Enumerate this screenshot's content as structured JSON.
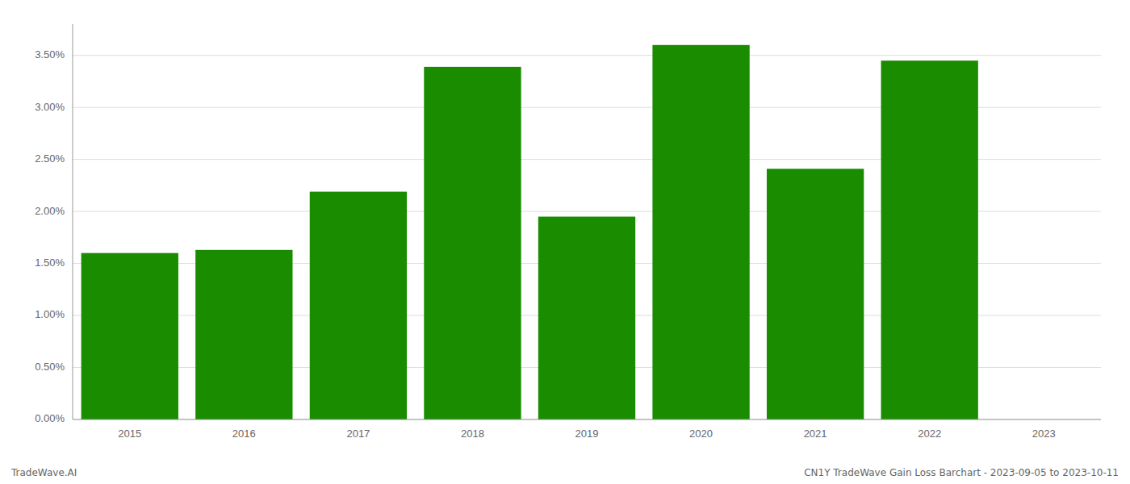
{
  "chart_data": {
    "type": "bar",
    "categories": [
      "2015",
      "2016",
      "2017",
      "2018",
      "2019",
      "2020",
      "2021",
      "2022",
      "2023"
    ],
    "values": [
      0.016,
      0.0163,
      0.0219,
      0.0339,
      0.0195,
      0.036,
      0.0241,
      0.0345,
      null
    ],
    "color": "#1a8c00",
    "ylim": [
      0.0,
      0.038
    ],
    "yticks": [
      {
        "value": 0.0,
        "label": "0.00%"
      },
      {
        "value": 0.005,
        "label": "0.50%"
      },
      {
        "value": 0.01,
        "label": "1.00%"
      },
      {
        "value": 0.015,
        "label": "1.50%"
      },
      {
        "value": 0.02,
        "label": "2.00%"
      },
      {
        "value": 0.025,
        "label": "2.50%"
      },
      {
        "value": 0.03,
        "label": "3.00%"
      },
      {
        "value": 0.035,
        "label": "3.50%"
      }
    ],
    "grid": true,
    "annotations": [
      "TradeWave.AI",
      "CN1Y TradeWave Gain Loss Barchart - 2023-09-05 to 2023-10-11"
    ]
  }
}
